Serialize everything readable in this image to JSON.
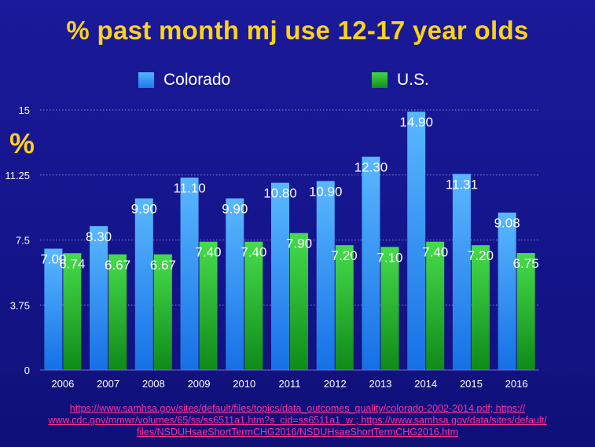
{
  "title": "% past month mj use 12-17 year olds",
  "y_unit_mark": "%",
  "legend": {
    "colorado": "Colorado",
    "us": "U.S."
  },
  "colors": {
    "background": "#16168e",
    "title": "#ffd21a",
    "colorado": "#2a8cf5",
    "us": "#22b82c",
    "source_link": "#ff2d9a"
  },
  "chart_data": {
    "type": "bar",
    "title": "% past month mj use 12-17 year olds",
    "categories": [
      "2006",
      "2007",
      "2008",
      "2009",
      "2010",
      "2011",
      "2012",
      "2013",
      "2014",
      "2015",
      "2016"
    ],
    "series": [
      {
        "name": "Colorado",
        "values": [
          7.0,
          8.3,
          9.9,
          11.1,
          9.9,
          10.8,
          10.9,
          12.3,
          14.9,
          11.31,
          9.08
        ],
        "labels": [
          "7.00",
          "8.30",
          "9.90",
          "11.10",
          "9.90",
          "10.80",
          "10.90",
          "12.30",
          "14.90",
          "11.31",
          "9.08"
        ]
      },
      {
        "name": "U.S.",
        "values": [
          6.74,
          6.67,
          6.67,
          7.4,
          7.4,
          7.9,
          7.2,
          7.1,
          7.4,
          7.2,
          6.75
        ],
        "labels": [
          "6.74",
          "6.67",
          "6.67",
          "7.40",
          "7.40",
          "7.90",
          "7.20",
          "7.10",
          "7.40",
          "7.20",
          "6.75"
        ]
      }
    ],
    "ylim": [
      0,
      15
    ],
    "yticks": [
      "0",
      "3.75",
      "7.5",
      "11.25",
      "15"
    ],
    "ylabel": "%",
    "xlabel": "",
    "grid": true,
    "legend_position": "top"
  },
  "source": {
    "line1": "https://www.samhsa.gov/sites/default/files/topics/data_outcomes_quality/colorado-2002-2014.pdf; https://",
    "line2": "www.cdc.gov/mmwr/volumes/65/ss/ss6511a1.htm?s_cid=ss6511a1_w ; https://www.samhsa.gov/data/sites/default/",
    "line3": "files/NSDUHsaeShortTermCHG2016/NSDUHsaeShortTermCHG2016.htm"
  }
}
